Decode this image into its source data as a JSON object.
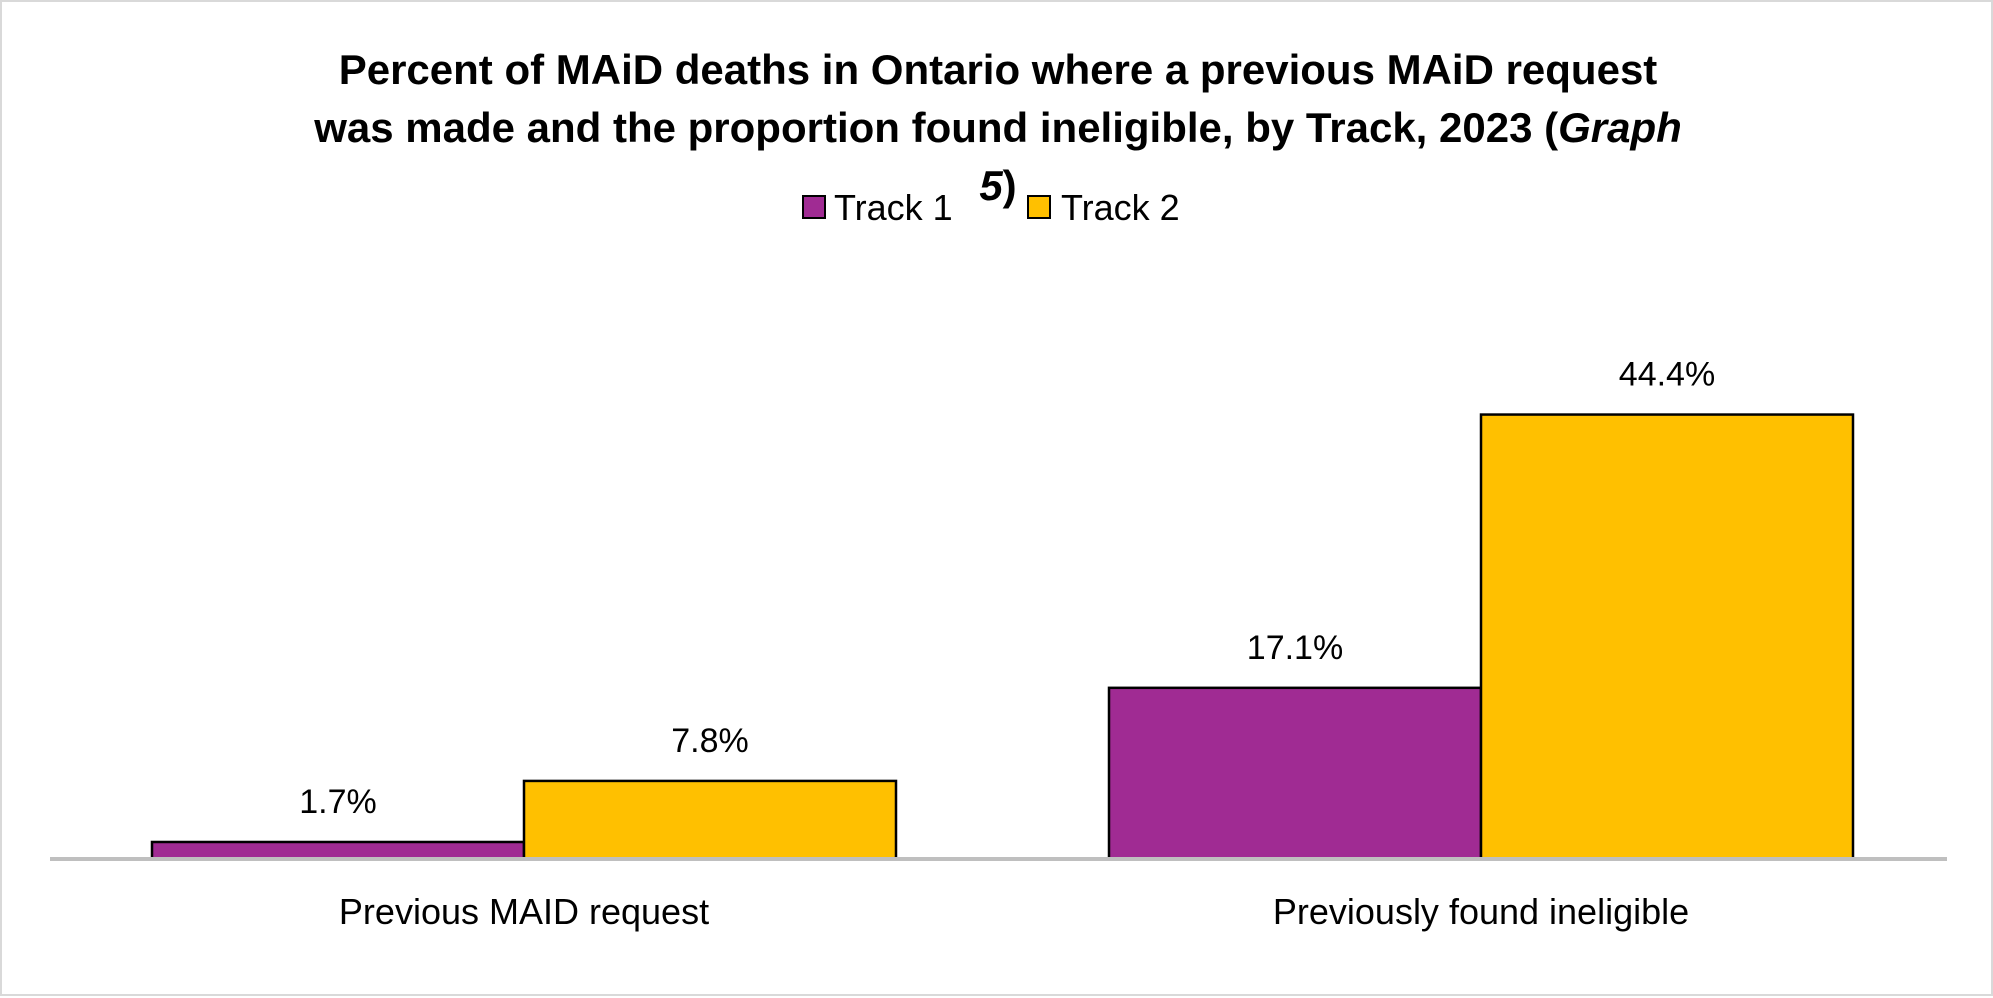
{
  "chart_data": {
    "type": "bar",
    "title": "Percent of MAiD deaths in Ontario where a previous MAiD request was made and the proportion found ineligible, by Track, 2023 (Graph 5)",
    "title_parts": {
      "line1": "Percent of MAiD deaths in Ontario where a previous MAiD request",
      "line2_regular": "was made and the proportion found ineligible, by Track, 2023 (",
      "line2_italic": "Graph",
      "line3_italic": "5",
      "line3_regular": ")"
    },
    "categories": [
      "Previous MAID request",
      "Previously found ineligible"
    ],
    "series": [
      {
        "name": "Track 1",
        "color": "#a02b93",
        "values": [
          1.7,
          17.1
        ],
        "labels": [
          "1.7%",
          "17.1%"
        ]
      },
      {
        "name": "Track 2",
        "color": "#ffc000",
        "values": [
          7.8,
          44.4
        ],
        "labels": [
          "7.8%",
          "44.4%"
        ]
      }
    ],
    "ylim": [
      0,
      50
    ],
    "grid": false,
    "legend_position": "top",
    "axis_color": "#bfbfbf",
    "bar_outline_color": "#000000"
  }
}
